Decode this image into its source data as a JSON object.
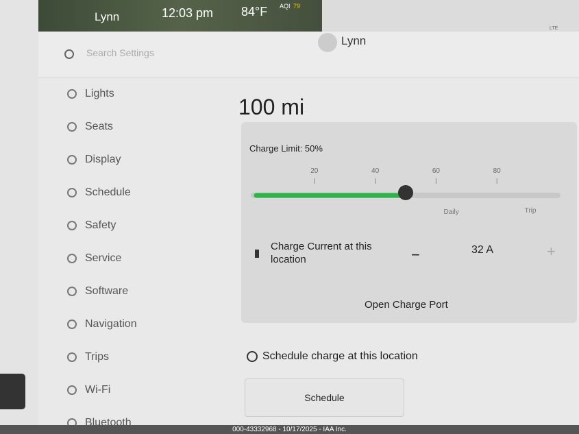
{
  "status_bar": {
    "user": "Lynn",
    "time": "12:03 pm",
    "temperature": "84°F",
    "aqi_label": "AQI",
    "aqi_value": "79"
  },
  "header": {
    "search_placeholder": "Search Settings",
    "user": "Lynn",
    "signal": "LTE"
  },
  "menu": [
    "Lights",
    "Seats",
    "Display",
    "Schedule",
    "Safety",
    "Service",
    "Software",
    "Navigation",
    "Trips",
    "Wi-Fi",
    "Bluetooth"
  ],
  "range": "100 mi",
  "charge_limit": {
    "label": "Charge Limit: 50%",
    "value": 50,
    "range": [
      0,
      100
    ],
    "ticks": [
      20,
      40,
      60,
      80
    ],
    "zones": [
      "Daily",
      "Trip"
    ]
  },
  "charge_current": {
    "label": "Charge Current at this location",
    "value": "32 A"
  },
  "open_port": "Open Charge Port",
  "schedule_heading": "Schedule charge at this location",
  "schedule_button": "Schedule",
  "footer": "000-43332968 - 10/17/2025 - IAA Inc."
}
